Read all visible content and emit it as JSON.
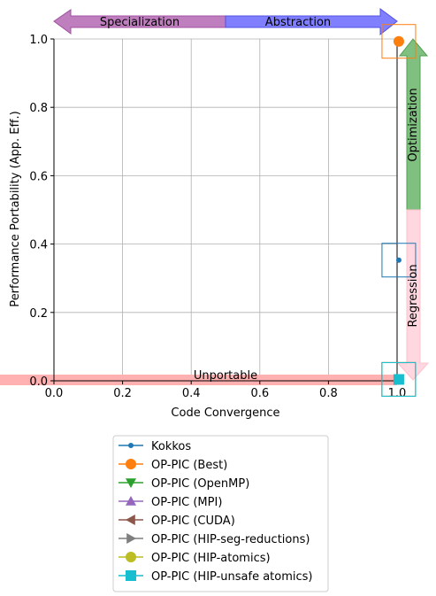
{
  "chart_data": {
    "type": "scatter",
    "xlabel": "Code Convergence",
    "ylabel": "Performance Portability (App. Eff.)",
    "xlim": [
      0.0,
      1.0
    ],
    "ylim": [
      0.0,
      1.0
    ],
    "xticks": [
      "0.0",
      "0.2",
      "0.4",
      "0.6",
      "0.8",
      "1.0"
    ],
    "yticks": [
      "0.0",
      "0.2",
      "0.4",
      "0.6",
      "0.8",
      "1.0"
    ],
    "grid": true,
    "legend_position": "bottom-center",
    "annotations": {
      "specialization": "Specialization",
      "abstraction": "Abstraction",
      "optimization": "Optimization",
      "regression": "Regression",
      "unportable": "Unportable"
    },
    "series": [
      {
        "name": "Kokkos",
        "marker": "circle-small",
        "color": "#1f77b4",
        "points": [
          [
            1.005,
            0.353
          ]
        ]
      },
      {
        "name": "OP-PIC (Best)",
        "marker": "circle",
        "color": "#ff7f0e",
        "points": [
          [
            1.005,
            0.993
          ]
        ]
      },
      {
        "name": "OP-PIC (OpenMP)",
        "marker": "triangle-down",
        "color": "#2ca02c",
        "points": [
          [
            1.005,
            0.004
          ]
        ]
      },
      {
        "name": "OP-PIC (MPI)",
        "marker": "triangle-up",
        "color": "#9467bd",
        "points": [
          [
            1.005,
            0.004
          ]
        ]
      },
      {
        "name": "OP-PIC (CUDA)",
        "marker": "triangle-left",
        "color": "#8c564b",
        "points": [
          [
            1.005,
            0.004
          ]
        ]
      },
      {
        "name": "OP-PIC (HIP-seg-reductions)",
        "marker": "triangle-right",
        "color": "#7f7f7f",
        "points": [
          [
            1.005,
            0.004
          ]
        ]
      },
      {
        "name": "OP-PIC (HIP-atomics)",
        "marker": "circle",
        "color": "#bcbd22",
        "points": [
          [
            1.005,
            0.004
          ]
        ]
      },
      {
        "name": "OP-PIC (HIP-unsafe atomics)",
        "marker": "square",
        "color": "#17becf",
        "points": [
          [
            1.005,
            0.004
          ]
        ]
      }
    ]
  }
}
